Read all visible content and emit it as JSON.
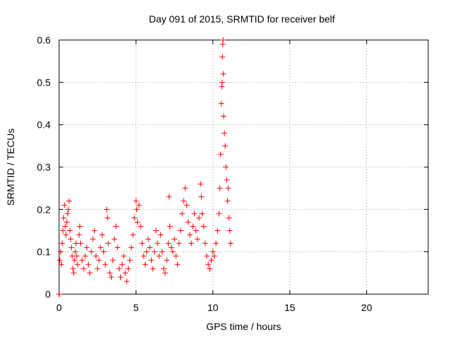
{
  "chart_data": {
    "type": "scatter",
    "title": "Day 091 of 2015, SRMTID for receiver belf",
    "xlabel": "GPS time / hours",
    "ylabel": "SRMTID / TECUs",
    "xlim": [
      0,
      24
    ],
    "ylim": [
      0,
      0.6
    ],
    "xticks": [
      0,
      5,
      10,
      15,
      20
    ],
    "yticks": [
      0,
      0.1,
      0.2,
      0.3,
      0.4,
      0.5,
      0.6
    ],
    "grid": true,
    "marker": "+",
    "color": "#ff0000",
    "series": [
      {
        "name": "SRMTID",
        "points": [
          [
            0.0,
            0.0
          ],
          [
            0.02,
            0.0
          ],
          [
            0.05,
            0.08
          ],
          [
            0.1,
            0.1
          ],
          [
            0.15,
            0.07
          ],
          [
            0.2,
            0.12
          ],
          [
            0.25,
            0.15
          ],
          [
            0.3,
            0.18
          ],
          [
            0.35,
            0.21
          ],
          [
            0.4,
            0.16
          ],
          [
            0.45,
            0.14
          ],
          [
            0.5,
            0.17
          ],
          [
            0.55,
            0.19
          ],
          [
            0.6,
            0.2
          ],
          [
            0.65,
            0.22
          ],
          [
            0.7,
            0.15
          ],
          [
            0.75,
            0.13
          ],
          [
            0.8,
            0.11
          ],
          [
            0.85,
            0.09
          ],
          [
            0.9,
            0.06
          ],
          [
            0.95,
            0.05
          ],
          [
            1.0,
            0.08
          ],
          [
            1.05,
            0.1
          ],
          [
            1.1,
            0.12
          ],
          [
            1.15,
            0.09
          ],
          [
            1.2,
            0.07
          ],
          [
            1.3,
            0.14
          ],
          [
            1.35,
            0.16
          ],
          [
            1.4,
            0.12
          ],
          [
            1.5,
            0.08
          ],
          [
            1.6,
            0.06
          ],
          [
            1.7,
            0.09
          ],
          [
            1.8,
            0.11
          ],
          [
            1.9,
            0.07
          ],
          [
            2.0,
            0.05
          ],
          [
            2.1,
            0.1
          ],
          [
            2.2,
            0.13
          ],
          [
            2.3,
            0.15
          ],
          [
            2.4,
            0.09
          ],
          [
            2.5,
            0.06
          ],
          [
            2.6,
            0.08
          ],
          [
            2.7,
            0.11
          ],
          [
            2.8,
            0.14
          ],
          [
            2.9,
            0.1
          ],
          [
            3.0,
            0.07
          ],
          [
            3.1,
            0.2
          ],
          [
            3.15,
            0.18
          ],
          [
            3.2,
            0.12
          ],
          [
            3.3,
            0.05
          ],
          [
            3.4,
            0.04
          ],
          [
            3.5,
            0.08
          ],
          [
            3.6,
            0.13
          ],
          [
            3.7,
            0.16
          ],
          [
            3.8,
            0.11
          ],
          [
            3.9,
            0.06
          ],
          [
            4.0,
            0.04
          ],
          [
            4.1,
            0.07
          ],
          [
            4.2,
            0.09
          ],
          [
            4.3,
            0.05
          ],
          [
            4.4,
            0.03
          ],
          [
            4.5,
            0.06
          ],
          [
            4.6,
            0.08
          ],
          [
            4.7,
            0.11
          ],
          [
            4.8,
            0.14
          ],
          [
            4.9,
            0.18
          ],
          [
            5.0,
            0.22
          ],
          [
            5.05,
            0.2
          ],
          [
            5.1,
            0.17
          ],
          [
            5.2,
            0.21
          ],
          [
            5.3,
            0.16
          ],
          [
            5.4,
            0.12
          ],
          [
            5.5,
            0.09
          ],
          [
            5.6,
            0.07
          ],
          [
            5.7,
            0.1
          ],
          [
            5.8,
            0.13
          ],
          [
            5.9,
            0.11
          ],
          [
            6.0,
            0.08
          ],
          [
            6.1,
            0.06
          ],
          [
            6.2,
            0.1
          ],
          [
            6.3,
            0.15
          ],
          [
            6.4,
            0.12
          ],
          [
            6.5,
            0.09
          ],
          [
            6.6,
            0.14
          ],
          [
            6.7,
            0.1
          ],
          [
            6.8,
            0.06
          ],
          [
            6.9,
            0.05
          ],
          [
            7.0,
            0.08
          ],
          [
            7.1,
            0.12
          ],
          [
            7.15,
            0.23
          ],
          [
            7.2,
            0.16
          ],
          [
            7.3,
            0.11
          ],
          [
            7.4,
            0.1
          ],
          [
            7.5,
            0.13
          ],
          [
            7.6,
            0.09
          ],
          [
            7.7,
            0.07
          ],
          [
            7.8,
            0.12
          ],
          [
            7.9,
            0.15
          ],
          [
            8.0,
            0.19
          ],
          [
            8.1,
            0.22
          ],
          [
            8.2,
            0.25
          ],
          [
            8.3,
            0.21
          ],
          [
            8.4,
            0.17
          ],
          [
            8.5,
            0.14
          ],
          [
            8.6,
            0.12
          ],
          [
            8.7,
            0.16
          ],
          [
            8.8,
            0.19
          ],
          [
            8.9,
            0.15
          ],
          [
            9.0,
            0.13
          ],
          [
            9.1,
            0.18
          ],
          [
            9.2,
            0.26
          ],
          [
            9.25,
            0.23
          ],
          [
            9.3,
            0.19
          ],
          [
            9.4,
            0.16
          ],
          [
            9.5,
            0.12
          ],
          [
            9.6,
            0.09
          ],
          [
            9.7,
            0.07
          ],
          [
            9.8,
            0.06
          ],
          [
            9.9,
            0.08
          ],
          [
            10.0,
            0.1
          ],
          [
            10.1,
            0.09
          ],
          [
            10.2,
            0.12
          ],
          [
            10.3,
            0.15
          ],
          [
            10.4,
            0.19
          ],
          [
            10.45,
            0.25
          ],
          [
            10.5,
            0.33
          ],
          [
            10.55,
            0.45
          ],
          [
            10.58,
            0.49
          ],
          [
            10.6,
            0.5
          ],
          [
            10.62,
            0.56
          ],
          [
            10.64,
            0.59
          ],
          [
            10.66,
            0.6
          ],
          [
            10.68,
            0.52
          ],
          [
            10.7,
            0.42
          ],
          [
            10.75,
            0.38
          ],
          [
            10.8,
            0.35
          ],
          [
            10.85,
            0.3
          ],
          [
            10.9,
            0.27
          ],
          [
            10.95,
            0.22
          ],
          [
            11.0,
            0.25
          ],
          [
            11.05,
            0.18
          ],
          [
            11.1,
            0.15
          ],
          [
            11.15,
            0.12
          ]
        ]
      }
    ]
  }
}
